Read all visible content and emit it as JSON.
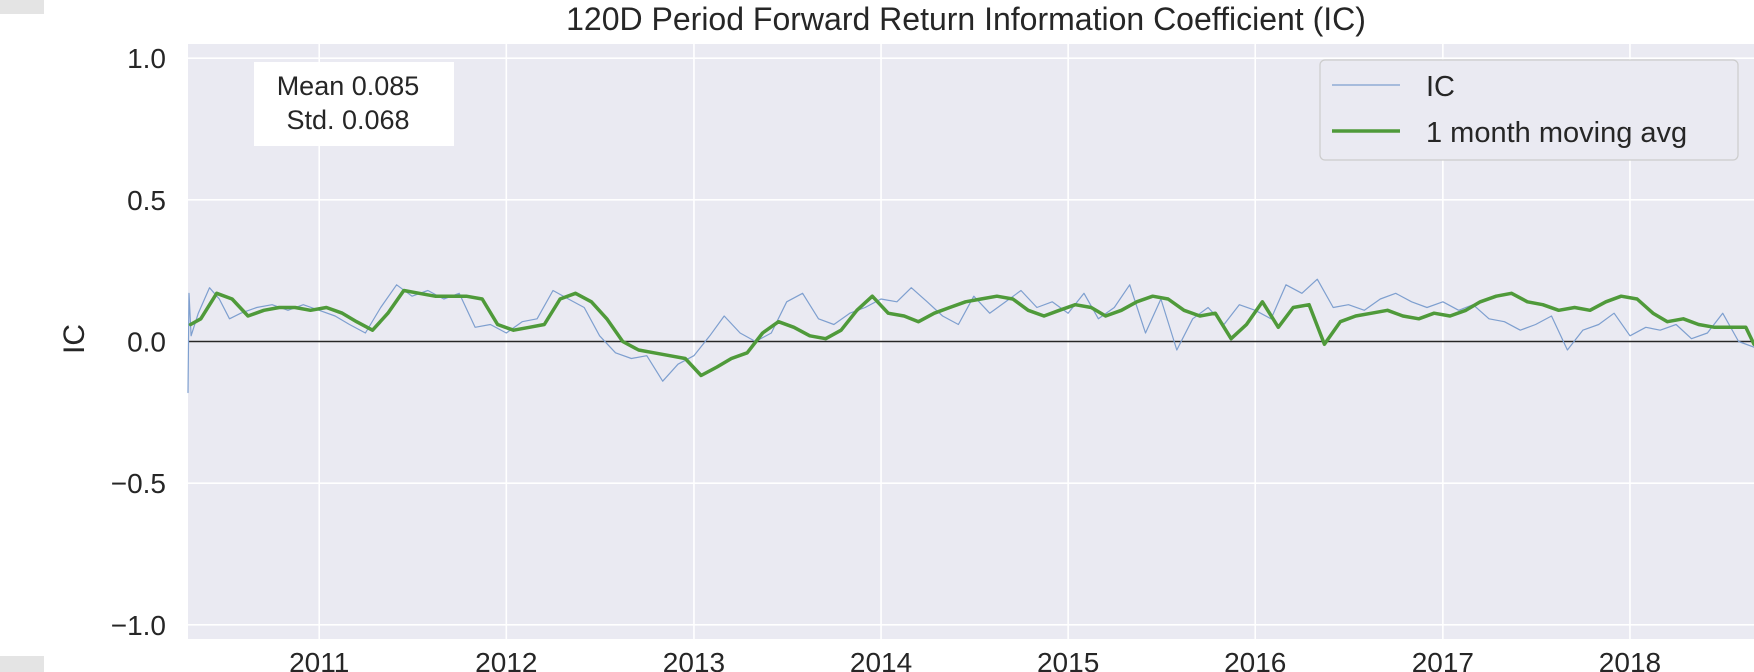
{
  "chart_data": {
    "type": "line",
    "title": "120D Period Forward Return Information Coefficient (IC)",
    "ylabel": "IC",
    "xlabel": "",
    "xlim": [
      "2010-04-20",
      "2018-08-31"
    ],
    "ylim": [
      -1.05,
      1.05
    ],
    "yticks": [
      1.0,
      0.5,
      0.0,
      -0.5,
      -1.0
    ],
    "ytick_labels": [
      "1.0",
      "0.5",
      "0.0",
      "−0.5",
      "−1.0"
    ],
    "xticks": [
      "2011-01-01",
      "2012-01-01",
      "2013-01-01",
      "2014-01-01",
      "2015-01-01",
      "2016-01-01",
      "2017-01-01",
      "2018-01-01"
    ],
    "xtick_labels": [
      "2011",
      "2012",
      "2013",
      "2014",
      "2015",
      "2016",
      "2017",
      "2018"
    ],
    "zero_line": true,
    "grid": true,
    "legend_position": "top-right",
    "stats_text": [
      "Mean 0.085",
      "Std. 0.068"
    ],
    "series": [
      {
        "name": "1 month moving avg",
        "color": "#4f9a3a",
        "x": [
          "2010-04-25",
          "2010-05-15",
          "2010-06-15",
          "2010-07-15",
          "2010-08-15",
          "2010-09-15",
          "2010-10-15",
          "2010-11-15",
          "2010-12-15",
          "2011-01-15",
          "2011-02-15",
          "2011-03-15",
          "2011-04-15",
          "2011-05-15",
          "2011-06-15",
          "2011-07-15",
          "2011-08-15",
          "2011-09-15",
          "2011-10-15",
          "2011-11-15",
          "2011-12-15",
          "2012-01-15",
          "2012-02-15",
          "2012-03-15",
          "2012-04-15",
          "2012-05-15",
          "2012-06-15",
          "2012-07-15",
          "2012-08-15",
          "2012-09-15",
          "2012-10-15",
          "2012-11-15",
          "2012-12-15",
          "2013-01-15",
          "2013-02-15",
          "2013-03-15",
          "2013-04-15",
          "2013-05-15",
          "2013-06-15",
          "2013-07-15",
          "2013-08-15",
          "2013-09-15",
          "2013-10-15",
          "2013-11-15",
          "2013-12-15",
          "2014-01-15",
          "2014-02-15",
          "2014-03-15",
          "2014-04-15",
          "2014-05-15",
          "2014-06-15",
          "2014-07-15",
          "2014-08-15",
          "2014-09-15",
          "2014-10-15",
          "2014-11-15",
          "2014-12-15",
          "2015-01-15",
          "2015-02-15",
          "2015-03-15",
          "2015-04-15",
          "2015-05-15",
          "2015-06-15",
          "2015-07-15",
          "2015-08-15",
          "2015-09-15",
          "2015-10-15",
          "2015-11-15",
          "2015-12-15",
          "2016-01-15",
          "2016-02-15",
          "2016-03-15",
          "2016-04-15",
          "2016-05-15",
          "2016-06-15",
          "2016-07-15",
          "2016-08-15",
          "2016-09-15",
          "2016-10-15",
          "2016-11-15",
          "2016-12-15",
          "2017-01-15",
          "2017-02-15",
          "2017-03-15",
          "2017-04-15",
          "2017-05-15",
          "2017-06-15",
          "2017-07-15",
          "2017-08-15",
          "2017-09-15",
          "2017-10-15",
          "2017-11-15",
          "2017-12-15",
          "2018-01-15",
          "2018-02-15",
          "2018-03-15",
          "2018-04-15",
          "2018-05-15",
          "2018-06-15",
          "2018-07-15",
          "2018-08-15",
          "2018-08-31"
        ],
        "y": [
          0.06,
          0.08,
          0.17,
          0.15,
          0.09,
          0.11,
          0.12,
          0.12,
          0.11,
          0.12,
          0.1,
          0.07,
          0.04,
          0.1,
          0.18,
          0.17,
          0.16,
          0.16,
          0.16,
          0.15,
          0.06,
          0.04,
          0.05,
          0.06,
          0.15,
          0.17,
          0.14,
          0.08,
          0.0,
          -0.03,
          -0.04,
          -0.05,
          -0.06,
          -0.12,
          -0.09,
          -0.06,
          -0.04,
          0.03,
          0.07,
          0.05,
          0.02,
          0.01,
          0.04,
          0.11,
          0.16,
          0.1,
          0.09,
          0.07,
          0.1,
          0.12,
          0.14,
          0.15,
          0.16,
          0.15,
          0.11,
          0.09,
          0.11,
          0.13,
          0.12,
          0.09,
          0.11,
          0.14,
          0.16,
          0.15,
          0.11,
          0.09,
          0.1,
          0.01,
          0.06,
          0.14,
          0.05,
          0.12,
          0.13,
          -0.01,
          0.07,
          0.09,
          0.1,
          0.11,
          0.09,
          0.08,
          0.1,
          0.09,
          0.11,
          0.14,
          0.16,
          0.17,
          0.14,
          0.13,
          0.11,
          0.12,
          0.11,
          0.14,
          0.16,
          0.15,
          0.1,
          0.07,
          0.08,
          0.06,
          0.05,
          0.05,
          0.05,
          -0.01
        ]
      },
      {
        "name": "IC",
        "color": "#7e9fcf",
        "x": [
          "2010-04-20",
          "2010-04-22",
          "2010-04-26",
          "2010-05-10",
          "2010-06-01",
          "2010-06-20",
          "2010-07-10",
          "2010-08-01",
          "2010-09-01",
          "2010-10-01",
          "2010-11-01",
          "2010-12-01",
          "2011-01-01",
          "2011-02-01",
          "2011-03-01",
          "2011-04-01",
          "2011-05-01",
          "2011-06-01",
          "2011-07-01",
          "2011-08-01",
          "2011-09-01",
          "2011-10-01",
          "2011-11-01",
          "2011-12-01",
          "2012-01-01",
          "2012-02-01",
          "2012-03-01",
          "2012-04-01",
          "2012-05-01",
          "2012-06-01",
          "2012-07-01",
          "2012-08-01",
          "2012-09-01",
          "2012-10-01",
          "2012-11-01",
          "2012-12-01",
          "2013-01-01",
          "2013-02-01",
          "2013-03-01",
          "2013-04-01",
          "2013-05-01",
          "2013-06-01",
          "2013-07-01",
          "2013-08-01",
          "2013-09-01",
          "2013-10-01",
          "2013-11-01",
          "2013-12-01",
          "2014-01-01",
          "2014-02-01",
          "2014-03-01",
          "2014-04-01",
          "2014-05-01",
          "2014-06-01",
          "2014-07-01",
          "2014-08-01",
          "2014-09-01",
          "2014-10-01",
          "2014-11-01",
          "2014-12-01",
          "2015-01-01",
          "2015-02-01",
          "2015-03-01",
          "2015-04-01",
          "2015-05-01",
          "2015-06-01",
          "2015-07-01",
          "2015-08-01",
          "2015-09-01",
          "2015-10-01",
          "2015-11-01",
          "2015-12-01",
          "2016-01-01",
          "2016-02-01",
          "2016-03-01",
          "2016-04-01",
          "2016-05-01",
          "2016-06-01",
          "2016-07-01",
          "2016-08-01",
          "2016-09-01",
          "2016-10-01",
          "2016-11-01",
          "2016-12-01",
          "2017-01-01",
          "2017-02-01",
          "2017-03-01",
          "2017-04-01",
          "2017-05-01",
          "2017-06-01",
          "2017-07-01",
          "2017-08-01",
          "2017-09-01",
          "2017-10-01",
          "2017-11-01",
          "2017-12-01",
          "2018-01-01",
          "2018-02-01",
          "2018-03-01",
          "2018-04-01",
          "2018-05-01",
          "2018-06-01",
          "2018-07-01",
          "2018-08-01",
          "2018-08-31"
        ],
        "y": [
          -0.18,
          0.17,
          0.02,
          0.1,
          0.19,
          0.15,
          0.08,
          0.1,
          0.12,
          0.13,
          0.11,
          0.13,
          0.11,
          0.09,
          0.06,
          0.03,
          0.12,
          0.2,
          0.16,
          0.18,
          0.15,
          0.17,
          0.05,
          0.06,
          0.03,
          0.07,
          0.08,
          0.18,
          0.15,
          0.12,
          0.02,
          -0.04,
          -0.06,
          -0.05,
          -0.14,
          -0.08,
          -0.05,
          0.02,
          0.09,
          0.03,
          0.0,
          0.03,
          0.14,
          0.17,
          0.08,
          0.06,
          0.1,
          0.12,
          0.15,
          0.14,
          0.19,
          0.14,
          0.09,
          0.06,
          0.16,
          0.1,
          0.14,
          0.18,
          0.12,
          0.14,
          0.1,
          0.17,
          0.08,
          0.12,
          0.2,
          0.03,
          0.15,
          -0.03,
          0.08,
          0.12,
          0.06,
          0.13,
          0.11,
          0.08,
          0.2,
          0.17,
          0.22,
          0.12,
          0.13,
          0.11,
          0.15,
          0.17,
          0.14,
          0.12,
          0.14,
          0.11,
          0.13,
          0.08,
          0.07,
          0.04,
          0.06,
          0.09,
          -0.03,
          0.04,
          0.06,
          0.1,
          0.02,
          0.05,
          0.04,
          0.06,
          0.01,
          0.03,
          0.1,
          0.0,
          -0.02
        ]
      }
    ]
  }
}
